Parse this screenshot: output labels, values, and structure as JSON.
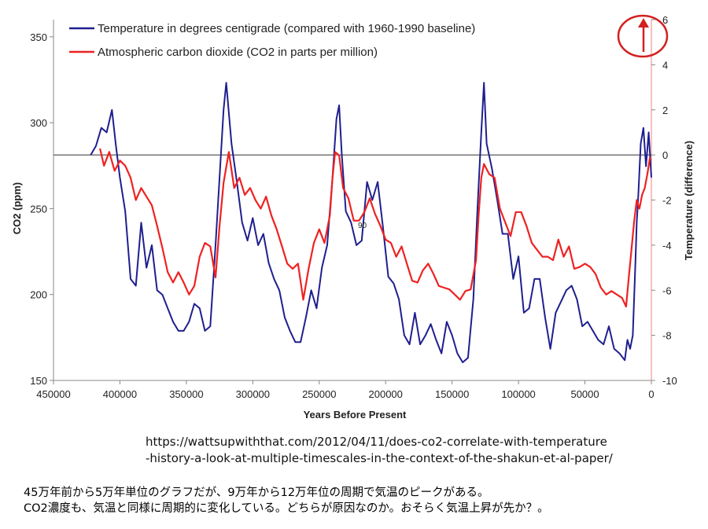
{
  "chart_data": {
    "type": "line",
    "title": "",
    "xlabel": "Years Before Present",
    "ylabel_left": "CO2 (ppm)",
    "ylabel_right": "Temperature (difference)",
    "xlim": [
      450000,
      0
    ],
    "ylim_left": [
      150,
      360
    ],
    "ylim_right": [
      -10,
      6
    ],
    "x_ticks": [
      450000,
      400000,
      350000,
      300000,
      250000,
      200000,
      150000,
      100000,
      50000,
      0
    ],
    "y_ticks_left": [
      150,
      200,
      250,
      300,
      350
    ],
    "y_ticks_right": [
      -10,
      -8,
      -6,
      -4,
      -2,
      0,
      2,
      4,
      6
    ],
    "baseline_temperature": 0,
    "annotation_label": "90",
    "series": [
      {
        "name": "Temperature in degrees centigrade (compared with 1960-1990 baseline)",
        "axis": "right",
        "color": "#1f1f8f",
        "x": [
          422000,
          418000,
          414000,
          410000,
          406000,
          403000,
          400000,
          396000,
          392000,
          388000,
          384000,
          380000,
          376000,
          372000,
          368000,
          364000,
          360000,
          356000,
          352000,
          348000,
          344000,
          340000,
          336000,
          332000,
          328000,
          325000,
          322000,
          320000,
          316000,
          312000,
          308000,
          304000,
          300000,
          296000,
          292000,
          288000,
          284000,
          280000,
          276000,
          272000,
          268000,
          264000,
          260000,
          256000,
          252000,
          248000,
          244000,
          240000,
          237000,
          235000,
          233000,
          230000,
          226000,
          222000,
          218000,
          214000,
          210000,
          206000,
          202000,
          198000,
          194000,
          190000,
          186000,
          182000,
          178000,
          174000,
          170000,
          166000,
          162000,
          158000,
          154000,
          150000,
          146000,
          142000,
          138000,
          134000,
          131000,
          128000,
          126000,
          124000,
          120000,
          116000,
          112000,
          108000,
          104000,
          100000,
          96000,
          92000,
          88000,
          84000,
          80000,
          76000,
          72000,
          68000,
          64000,
          60000,
          56000,
          52000,
          48000,
          44000,
          40000,
          36000,
          32000,
          28000,
          24000,
          20000,
          18000,
          16000,
          14000,
          12000,
          11000,
          10000,
          8000,
          6000,
          4000,
          2000,
          0
        ],
        "values": [
          0.0,
          0.4,
          1.2,
          1.0,
          2.0,
          0.4,
          -1.0,
          -2.5,
          -5.5,
          -5.8,
          -3.0,
          -5.0,
          -4.0,
          -6.0,
          -6.2,
          -6.8,
          -7.4,
          -7.8,
          -7.8,
          -7.4,
          -6.6,
          -6.8,
          -7.8,
          -7.6,
          -4.0,
          -1.0,
          2.0,
          3.2,
          0.5,
          -1.2,
          -3.0,
          -3.8,
          -2.8,
          -4.0,
          -3.5,
          -4.8,
          -5.5,
          -6.0,
          -7.2,
          -7.8,
          -8.3,
          -8.3,
          -7.2,
          -6.0,
          -6.8,
          -5.0,
          -4.0,
          -1.0,
          1.6,
          2.2,
          0.0,
          -2.5,
          -3.0,
          -4.0,
          -3.8,
          -1.2,
          -2.0,
          -1.2,
          -3.2,
          -5.4,
          -5.7,
          -6.4,
          -8.0,
          -8.4,
          -7.0,
          -8.4,
          -8.0,
          -7.5,
          -8.2,
          -8.8,
          -7.4,
          -8.0,
          -8.8,
          -9.2,
          -9.0,
          -6.4,
          -2.5,
          1.0,
          3.2,
          0.5,
          -0.6,
          -2.0,
          -3.5,
          -3.5,
          -5.5,
          -4.5,
          -7.0,
          -6.8,
          -5.5,
          -5.5,
          -7.2,
          -8.6,
          -7.0,
          -6.5,
          -6.0,
          -5.8,
          -6.4,
          -7.6,
          -7.4,
          -7.8,
          -8.2,
          -8.4,
          -7.6,
          -8.6,
          -8.8,
          -9.1,
          -8.2,
          -8.6,
          -8.0,
          -4.8,
          -3.0,
          -2.0,
          0.5,
          1.2,
          -0.5,
          1.0,
          -1.0
        ]
      },
      {
        "name": "Atmospheric carbon dioxide (CO2 in parts per million)",
        "axis": "left",
        "color": "#ee2222",
        "x": [
          415000,
          412000,
          408000,
          404000,
          400000,
          396000,
          392000,
          388000,
          384000,
          380000,
          376000,
          372000,
          368000,
          364000,
          360000,
          356000,
          352000,
          348000,
          344000,
          340000,
          336000,
          332000,
          328000,
          325000,
          322000,
          318000,
          314000,
          310000,
          306000,
          302000,
          298000,
          294000,
          290000,
          286000,
          282000,
          278000,
          274000,
          270000,
          266000,
          262000,
          258000,
          254000,
          250000,
          246000,
          242000,
          240000,
          238000,
          235000,
          232000,
          228000,
          224000,
          220000,
          216000,
          212000,
          208000,
          204000,
          200000,
          196000,
          192000,
          188000,
          184000,
          180000,
          176000,
          172000,
          168000,
          164000,
          160000,
          156000,
          152000,
          148000,
          144000,
          140000,
          136000,
          132000,
          130000,
          128000,
          126000,
          122000,
          118000,
          114000,
          110000,
          106000,
          102000,
          98000,
          94000,
          90000,
          86000,
          82000,
          78000,
          74000,
          70000,
          66000,
          62000,
          58000,
          54000,
          50000,
          46000,
          42000,
          38000,
          34000,
          30000,
          26000,
          22000,
          19000,
          17000,
          15000,
          13000,
          11000,
          9000,
          7000,
          5000,
          3000,
          1000
        ],
        "values": [
          285,
          275,
          283,
          272,
          278,
          275,
          268,
          255,
          262,
          257,
          252,
          240,
          227,
          213,
          207,
          213,
          207,
          200,
          205,
          222,
          230,
          228,
          210,
          240,
          265,
          283,
          262,
          268,
          258,
          262,
          255,
          250,
          257,
          246,
          238,
          228,
          218,
          215,
          218,
          197,
          215,
          230,
          238,
          230,
          246,
          268,
          283,
          281,
          262,
          256,
          243,
          243,
          248,
          256,
          247,
          240,
          232,
          230,
          222,
          228,
          218,
          208,
          207,
          214,
          218,
          212,
          205,
          204,
          203,
          200,
          197,
          202,
          203,
          220,
          246,
          268,
          276,
          270,
          268,
          250,
          242,
          234,
          248,
          248,
          240,
          230,
          226,
          222,
          222,
          220,
          232,
          222,
          228,
          215,
          216,
          218,
          216,
          212,
          204,
          200,
          202,
          200,
          198,
          193,
          210,
          226,
          242,
          255,
          250,
          258,
          262,
          270,
          280
        ]
      }
    ],
    "legend": "top-left"
  },
  "annotation": {
    "circle_color": "#d42020",
    "arrow_color": "#d42020",
    "vline_color": "#f08080"
  },
  "source_url_line1": "https://wattsupwiththat.com/2012/04/11/does-co2-correlate-with-temperature",
  "source_url_line2": "-history-a-look-at-multiple-timescales-in-the-context-of-the-shakun-et-al-paper/",
  "note_line1": "45万年前から5万年単位のグラフだが、9万年から12万年位の周期で気温のピークがある。",
  "note_line2": "CO2濃度も、気温と同様に周期的に変化している。どちらが原因なのか。おそらく気温上昇が先か？。"
}
